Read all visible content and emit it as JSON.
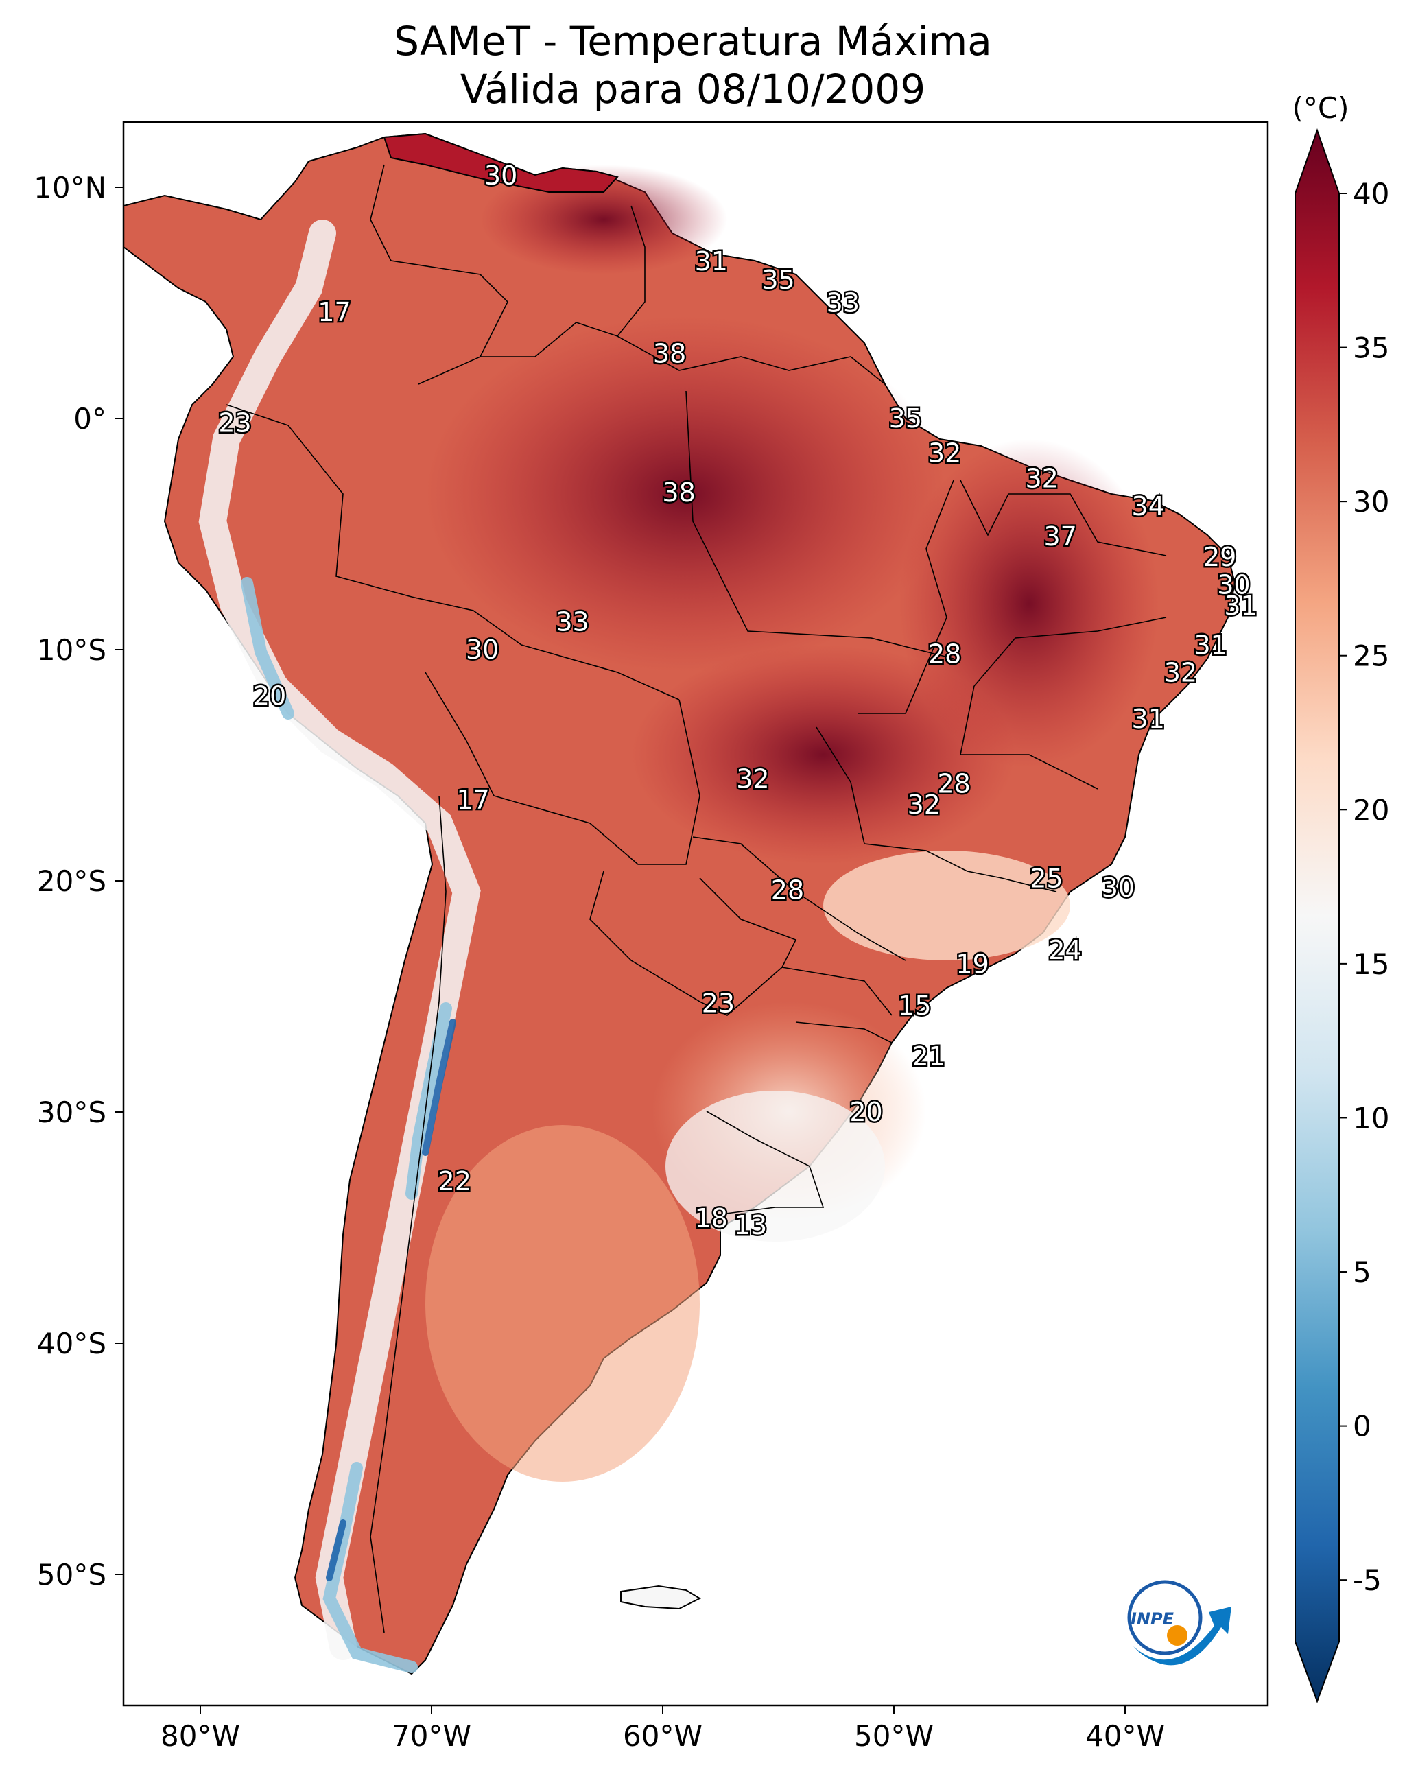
{
  "title": {
    "line1": "SAMeT - Temperatura Máxima",
    "line2": "Válida para 08/10/2009"
  },
  "colorbar": {
    "unit": "(°C)",
    "ticks": [
      "40",
      "35",
      "30",
      "25",
      "20",
      "15",
      "10",
      "5",
      "0",
      "-5"
    ],
    "colors": [
      "#053061",
      "#2166ac",
      "#4393c3",
      "#92c5de",
      "#d1e5f0",
      "#f7f7f7",
      "#fddbc7",
      "#f4a582",
      "#d6604d",
      "#b2182b",
      "#67001f"
    ]
  },
  "axes": {
    "lat_labels": [
      "10°N",
      "0°",
      "10°S",
      "20°S",
      "30°S",
      "40°S",
      "50°S"
    ],
    "lon_labels": [
      "80°W",
      "70°W",
      "60°W",
      "50°W",
      "40°W"
    ]
  },
  "stations": [
    {
      "value": "30",
      "lon": -67.0,
      "lat": 10.5
    },
    {
      "value": "31",
      "lon": -57.9,
      "lat": 6.8
    },
    {
      "value": "35",
      "lon": -55.0,
      "lat": 6.0
    },
    {
      "value": "33",
      "lon": -52.2,
      "lat": 5.0
    },
    {
      "value": "17",
      "lon": -74.2,
      "lat": 4.6
    },
    {
      "value": "38",
      "lon": -59.7,
      "lat": 2.8
    },
    {
      "value": "23",
      "lon": -78.5,
      "lat": -0.2
    },
    {
      "value": "35",
      "lon": -49.5,
      "lat": 0.0
    },
    {
      "value": "32",
      "lon": -47.8,
      "lat": -1.5
    },
    {
      "value": "38",
      "lon": -59.3,
      "lat": -3.2
    },
    {
      "value": "32",
      "lon": -43.6,
      "lat": -2.6
    },
    {
      "value": "34",
      "lon": -39.0,
      "lat": -3.8
    },
    {
      "value": "37",
      "lon": -42.8,
      "lat": -5.1
    },
    {
      "value": "29",
      "lon": -35.9,
      "lat": -6.0
    },
    {
      "value": "30",
      "lon": -35.3,
      "lat": -7.2
    },
    {
      "value": "31",
      "lon": -35.0,
      "lat": -8.1
    },
    {
      "value": "33",
      "lon": -63.9,
      "lat": -8.8
    },
    {
      "value": "31",
      "lon": -36.3,
      "lat": -9.8
    },
    {
      "value": "30",
      "lon": -67.8,
      "lat": -10.0
    },
    {
      "value": "28",
      "lon": -47.8,
      "lat": -10.2
    },
    {
      "value": "32",
      "lon": -37.6,
      "lat": -11.0
    },
    {
      "value": "20",
      "lon": -77.0,
      "lat": -12.0
    },
    {
      "value": "31",
      "lon": -39.0,
      "lat": -13.0
    },
    {
      "value": "32",
      "lon": -56.1,
      "lat": -15.6
    },
    {
      "value": "28",
      "lon": -47.4,
      "lat": -15.8
    },
    {
      "value": "17",
      "lon": -68.2,
      "lat": -16.5
    },
    {
      "value": "32",
      "lon": -48.7,
      "lat": -16.7
    },
    {
      "value": "25",
      "lon": -43.4,
      "lat": -19.9
    },
    {
      "value": "30",
      "lon": -40.3,
      "lat": -20.3
    },
    {
      "value": "28",
      "lon": -54.6,
      "lat": -20.4
    },
    {
      "value": "24",
      "lon": -42.6,
      "lat": -23.0
    },
    {
      "value": "19",
      "lon": -46.6,
      "lat": -23.6
    },
    {
      "value": "23",
      "lon": -57.6,
      "lat": -25.3
    },
    {
      "value": "15",
      "lon": -49.1,
      "lat": -25.4
    },
    {
      "value": "21",
      "lon": -48.5,
      "lat": -27.6
    },
    {
      "value": "20",
      "lon": -51.2,
      "lat": -30.0
    },
    {
      "value": "22",
      "lon": -69.0,
      "lat": -33.0
    },
    {
      "value": "18",
      "lon": -57.9,
      "lat": -34.6
    },
    {
      "value": "13",
      "lon": -56.2,
      "lat": -34.9
    }
  ],
  "logo": {
    "text": "INPE"
  }
}
